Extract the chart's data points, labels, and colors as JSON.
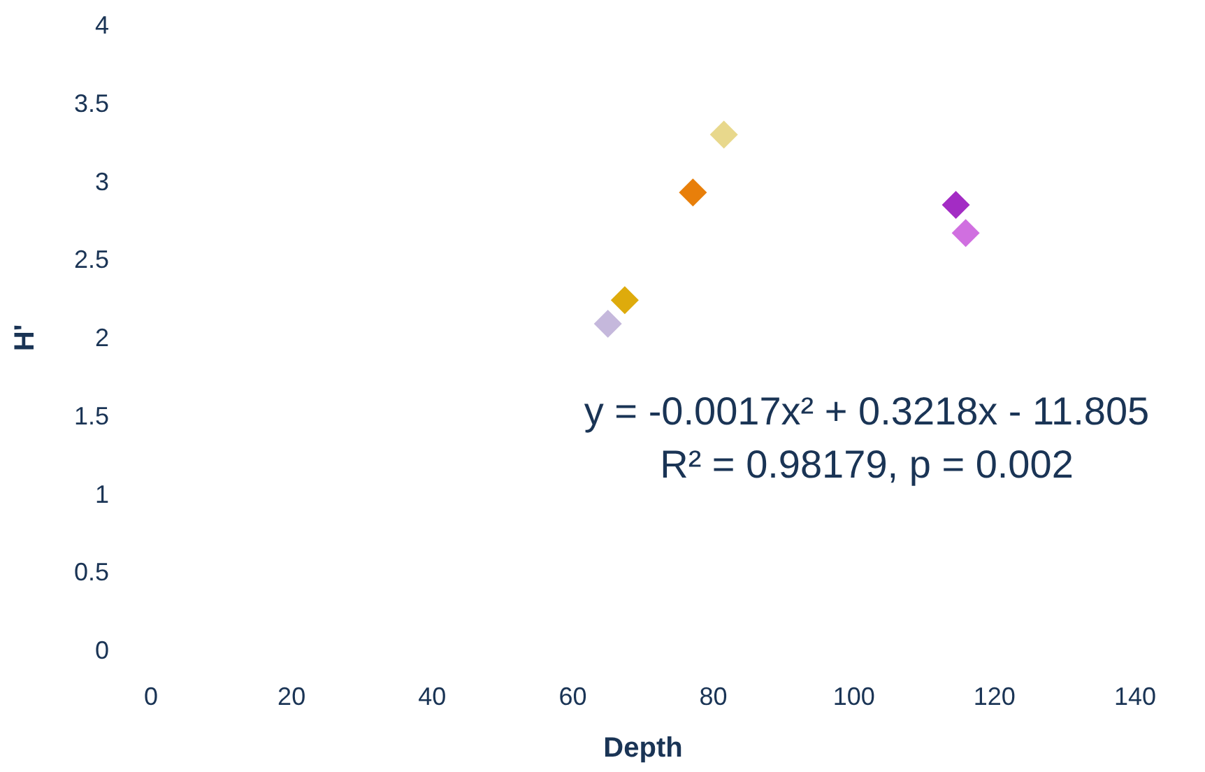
{
  "chart_data": {
    "type": "scatter",
    "xlabel": "Depth",
    "ylabel": "H'",
    "annotations": [
      "y = -0.0017x² + 0.3218x - 11.805",
      "R² = 0.98179, p = 0.002"
    ],
    "x": [
      65.0,
      67.4,
      77.1,
      81.5,
      114.5,
      115.9
    ],
    "series": [
      {
        "values": [
          2.09,
          2.24,
          2.93,
          3.3,
          2.85,
          2.67
        ],
        "colors": [
          "#c5b8dc",
          "#deab0c",
          "#e87f0a",
          "#e8d88c",
          "#a32cc4",
          "#d06fe0"
        ]
      }
    ],
    "xlim": [
      0,
      140
    ],
    "xticks": [
      0,
      20,
      40,
      60,
      80,
      100,
      120,
      140
    ],
    "ylim": [
      0,
      4
    ],
    "yticks": [
      0,
      0.5,
      1,
      1.5,
      2,
      2.5,
      3,
      3.5,
      4
    ],
    "grid": false,
    "marker": "diamond"
  }
}
